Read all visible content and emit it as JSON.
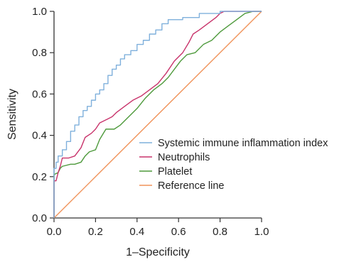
{
  "chart_data": {
    "type": "line",
    "title": "",
    "xlabel": "1–Specificity",
    "ylabel": "Sensitivity",
    "xlim": [
      0,
      1
    ],
    "ylim": [
      0,
      1
    ],
    "x_ticks": [
      "0.0",
      "0.2",
      "0.4",
      "0.6",
      "0.8",
      "1.0"
    ],
    "y_ticks": [
      "0.0",
      "0.2",
      "0.4",
      "0.6",
      "0.8",
      "1.0"
    ],
    "grid": false,
    "legend_position": "right-center",
    "series": [
      {
        "name": "Systemic immune inflammation index",
        "color": "#7fb0dc",
        "points": [
          [
            0,
            0
          ],
          [
            0,
            0.24
          ],
          [
            0.01,
            0.24
          ],
          [
            0.01,
            0.27
          ],
          [
            0.02,
            0.27
          ],
          [
            0.02,
            0.3
          ],
          [
            0.04,
            0.3
          ],
          [
            0.04,
            0.33
          ],
          [
            0.06,
            0.33
          ],
          [
            0.06,
            0.37
          ],
          [
            0.08,
            0.37
          ],
          [
            0.08,
            0.42
          ],
          [
            0.1,
            0.42
          ],
          [
            0.1,
            0.45
          ],
          [
            0.12,
            0.45
          ],
          [
            0.12,
            0.49
          ],
          [
            0.14,
            0.49
          ],
          [
            0.14,
            0.52
          ],
          [
            0.16,
            0.52
          ],
          [
            0.16,
            0.54
          ],
          [
            0.18,
            0.54
          ],
          [
            0.18,
            0.57
          ],
          [
            0.2,
            0.57
          ],
          [
            0.2,
            0.6
          ],
          [
            0.22,
            0.6
          ],
          [
            0.22,
            0.62
          ],
          [
            0.24,
            0.62
          ],
          [
            0.24,
            0.65
          ],
          [
            0.26,
            0.65
          ],
          [
            0.26,
            0.69
          ],
          [
            0.28,
            0.69
          ],
          [
            0.28,
            0.72
          ],
          [
            0.3,
            0.72
          ],
          [
            0.3,
            0.74
          ],
          [
            0.32,
            0.74
          ],
          [
            0.32,
            0.77
          ],
          [
            0.34,
            0.77
          ],
          [
            0.34,
            0.79
          ],
          [
            0.37,
            0.79
          ],
          [
            0.37,
            0.81
          ],
          [
            0.4,
            0.81
          ],
          [
            0.4,
            0.84
          ],
          [
            0.43,
            0.84
          ],
          [
            0.43,
            0.86
          ],
          [
            0.46,
            0.86
          ],
          [
            0.46,
            0.89
          ],
          [
            0.49,
            0.89
          ],
          [
            0.49,
            0.91
          ],
          [
            0.52,
            0.91
          ],
          [
            0.52,
            0.94
          ],
          [
            0.55,
            0.94
          ],
          [
            0.55,
            0.96
          ],
          [
            0.62,
            0.96
          ],
          [
            0.62,
            0.97
          ],
          [
            0.7,
            0.97
          ],
          [
            0.7,
            0.99
          ],
          [
            0.8,
            0.99
          ],
          [
            0.8,
            1.0
          ],
          [
            1.0,
            1.0
          ]
        ]
      },
      {
        "name": "Neutrophils",
        "color": "#c8336b",
        "points": [
          [
            0,
            0
          ],
          [
            0,
            0.18
          ],
          [
            0.01,
            0.18
          ],
          [
            0.02,
            0.22
          ],
          [
            0.03,
            0.25
          ],
          [
            0.04,
            0.29
          ],
          [
            0.07,
            0.29
          ],
          [
            0.1,
            0.3
          ],
          [
            0.13,
            0.34
          ],
          [
            0.15,
            0.39
          ],
          [
            0.18,
            0.41
          ],
          [
            0.2,
            0.43
          ],
          [
            0.22,
            0.46
          ],
          [
            0.26,
            0.48
          ],
          [
            0.28,
            0.49
          ],
          [
            0.3,
            0.51
          ],
          [
            0.34,
            0.54
          ],
          [
            0.38,
            0.57
          ],
          [
            0.42,
            0.59
          ],
          [
            0.46,
            0.62
          ],
          [
            0.5,
            0.65
          ],
          [
            0.54,
            0.7
          ],
          [
            0.58,
            0.76
          ],
          [
            0.62,
            0.8
          ],
          [
            0.65,
            0.85
          ],
          [
            0.67,
            0.89
          ],
          [
            0.7,
            0.91
          ],
          [
            0.74,
            0.94
          ],
          [
            0.78,
            0.97
          ],
          [
            0.8,
            0.99
          ],
          [
            0.82,
            1.0
          ],
          [
            1.0,
            1.0
          ]
        ]
      },
      {
        "name": "Platelet",
        "color": "#4e9a3c",
        "points": [
          [
            0,
            0
          ],
          [
            0,
            0.21
          ],
          [
            0.02,
            0.22
          ],
          [
            0.03,
            0.24
          ],
          [
            0.04,
            0.25
          ],
          [
            0.08,
            0.26
          ],
          [
            0.1,
            0.26
          ],
          [
            0.13,
            0.27
          ],
          [
            0.15,
            0.3
          ],
          [
            0.17,
            0.32
          ],
          [
            0.2,
            0.33
          ],
          [
            0.22,
            0.38
          ],
          [
            0.25,
            0.43
          ],
          [
            0.29,
            0.43
          ],
          [
            0.32,
            0.45
          ],
          [
            0.36,
            0.49
          ],
          [
            0.4,
            0.53
          ],
          [
            0.44,
            0.58
          ],
          [
            0.48,
            0.62
          ],
          [
            0.52,
            0.65
          ],
          [
            0.55,
            0.68
          ],
          [
            0.58,
            0.72
          ],
          [
            0.61,
            0.76
          ],
          [
            0.64,
            0.79
          ],
          [
            0.68,
            0.8
          ],
          [
            0.72,
            0.84
          ],
          [
            0.76,
            0.86
          ],
          [
            0.8,
            0.9
          ],
          [
            0.84,
            0.93
          ],
          [
            0.88,
            0.96
          ],
          [
            0.92,
            0.99
          ],
          [
            0.96,
            1.0
          ],
          [
            1.0,
            1.0
          ]
        ]
      },
      {
        "name": "Reference line",
        "color": "#f0935a",
        "points": [
          [
            0,
            0
          ],
          [
            1,
            1
          ]
        ]
      }
    ]
  }
}
